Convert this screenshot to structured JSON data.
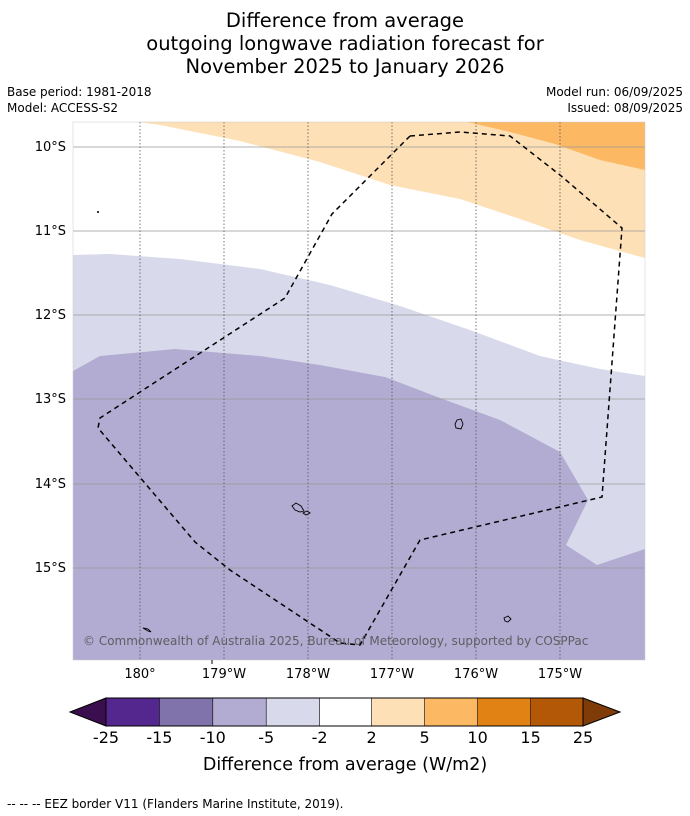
{
  "title": {
    "line1": "Difference from average",
    "line2": "outgoing longwave radiation forecast for",
    "line3": "November 2025 to January 2026"
  },
  "meta": {
    "base_period": "Base period: 1981-2018",
    "model": "Model: ACCESS-S2",
    "model_run": "Model run: 06/09/2025",
    "issued": "Issued: 08/09/2025"
  },
  "map": {
    "lat_labels": [
      "10°S",
      "11°S",
      "12°S",
      "13°S",
      "14°S",
      "15°S"
    ],
    "lon_labels": [
      "180°",
      "179°W",
      "178°W",
      "177°W",
      "176°W",
      "175°W"
    ],
    "copyright": "© Commonwealth of Australia 2025, Bureau of Meteorology, supported by COSPPac"
  },
  "colorbar": {
    "ticks": [
      "-25",
      "-15",
      "-10",
      "-5",
      "-2",
      "2",
      "5",
      "10",
      "15",
      "25"
    ],
    "label": "Difference from average (W/m2)",
    "colors": [
      "#3b0f4f",
      "#54278f",
      "#8073ac",
      "#b2abd2",
      "#d8daeb",
      "#ffffff",
      "#fee0b6",
      "#fdb863",
      "#e08214",
      "#b35806",
      "#7f3b08"
    ]
  },
  "footer": {
    "eez_note": "--  --  -- EEZ border V11 (Flanders Marine Institute, 2019)."
  }
}
